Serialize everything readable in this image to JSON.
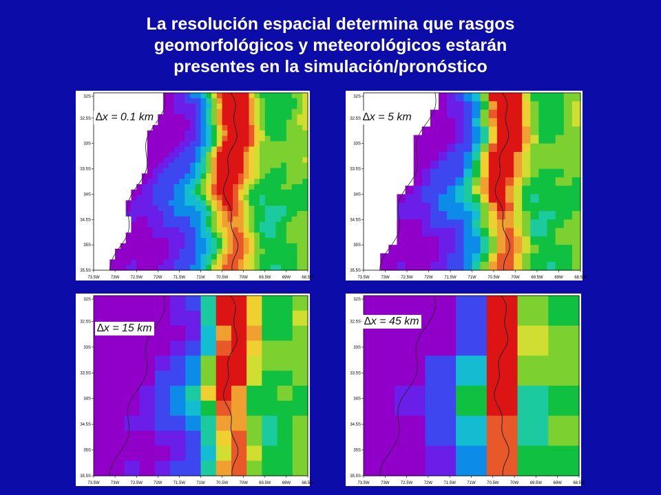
{
  "title_lines": [
    "La resolución espacial determina que rasgos",
    "geomorfológicos y meteorológicos estarán",
    "presentes en la simulación/pronóstico"
  ],
  "x_ticks": [
    "73.5W",
    "73W",
    "72.5W",
    "72W",
    "71.5W",
    "71W",
    "70.5W",
    "70W",
    "69.5W",
    "69W",
    "68.5W"
  ],
  "y_ticks": [
    "32S",
    "32.5S",
    "33S",
    "33.5S",
    "34S",
    "34.5S",
    "35S",
    "35.5S"
  ],
  "panels": [
    {
      "id": "p01",
      "label": "∆x = 0.1 km",
      "resolution_km": 0.1
    },
    {
      "id": "p5",
      "label": "∆x = 5 km",
      "resolution_km": 5
    },
    {
      "id": "p15",
      "label": "∆x = 15 km",
      "resolution_km": 15
    },
    {
      "id": "p45",
      "label": "∆x = 45 km",
      "resolution_km": 45
    }
  ],
  "colors": {
    "background": "#0c0ca8",
    "elevation_palette": [
      "#9000c8",
      "#6a1ee8",
      "#3e46f0",
      "#0c8ce8",
      "#14bcd2",
      "#1ccaa0",
      "#10c040",
      "#7cd030",
      "#d0de32",
      "#f0d030",
      "#f0a030",
      "#e85828",
      "#dc1414"
    ]
  }
}
